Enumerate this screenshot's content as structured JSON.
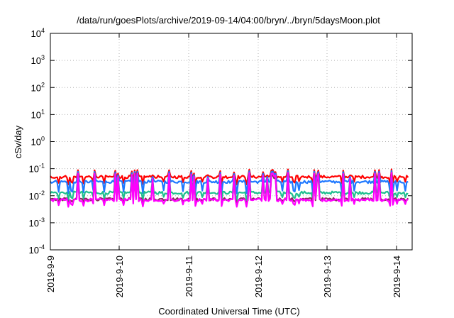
{
  "chart_data": {
    "type": "line",
    "title": "/data/run/goesPlots/archive/2019-09-14/04:00/bryn/../bryn/5daysMoon.plot",
    "xlabel": "Coordinated Universal Time (UTC)",
    "ylabel": "cSv/day",
    "y_scale": "log",
    "ylim": [
      0.0001,
      10000
    ],
    "y_ticks": [
      {
        "value": 0.0001,
        "base": "10",
        "exp": "-4"
      },
      {
        "value": 0.001,
        "base": "10",
        "exp": "-3"
      },
      {
        "value": 0.01,
        "base": "10",
        "exp": "-2"
      },
      {
        "value": 0.1,
        "base": "10",
        "exp": "-1"
      },
      {
        "value": 1,
        "base": "10",
        "exp": "0"
      },
      {
        "value": 10,
        "base": "10",
        "exp": "1"
      },
      {
        "value": 100,
        "base": "10",
        "exp": "2"
      },
      {
        "value": 1000,
        "base": "10",
        "exp": "3"
      },
      {
        "value": 10000,
        "base": "10",
        "exp": "4"
      }
    ],
    "x_ticks": [
      "2019-9-9",
      "2019-9-10",
      "2019-9-11",
      "2019-9-12",
      "2019-9-13",
      "2019-9-14"
    ],
    "xlim": [
      "2019-09-09 00:00",
      "2019-09-14 04:00"
    ],
    "grid": true,
    "series": [
      {
        "color": "#ff0000",
        "baseline": 0.05,
        "spike_to": 0.08,
        "dip_to": 0.03
      },
      {
        "color": "#1e78ff",
        "baseline": 0.033,
        "spike_to": 0.07,
        "dip_to": 0.014
      },
      {
        "color": "#1fbf8f",
        "baseline": 0.013,
        "spike_to": 0.06,
        "dip_to": 0.008
      },
      {
        "color": "#8b2a60",
        "baseline": 0.0075,
        "spike_to": 0.05,
        "dip_to": 0.006
      },
      {
        "color": "#ff00ff",
        "baseline": 0.007,
        "spike_to": 0.06,
        "dip_to": 0.0045
      }
    ]
  }
}
